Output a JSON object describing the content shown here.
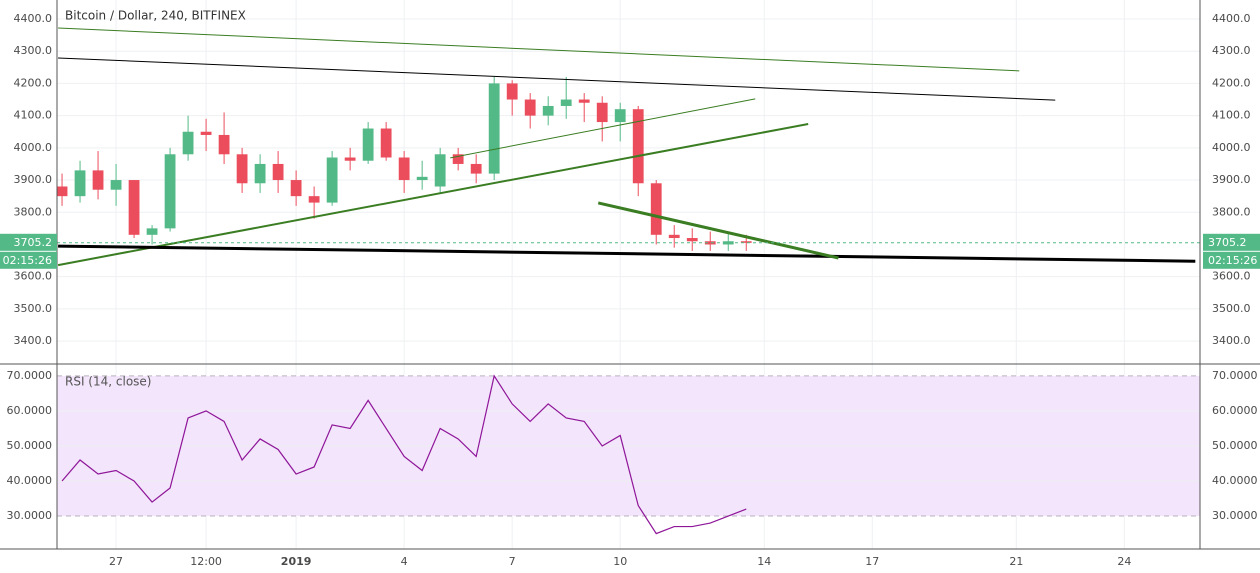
{
  "chart_data": [
    {
      "type": "candlestick",
      "title": "Bitcoin / Dollar, 240, BITFINEX",
      "x": [
        25.5,
        26,
        26.5,
        27,
        27.5,
        28,
        28.5,
        29,
        29.5,
        30,
        30.5,
        31,
        31.5,
        32,
        32.5,
        33,
        33.5,
        34,
        34.5,
        35,
        35.5,
        36,
        36.5,
        37,
        37.5,
        38,
        38.5,
        39,
        39.5,
        40,
        40.5,
        41,
        41.5,
        42,
        42.5,
        43,
        43.5,
        44,
        44.5
      ],
      "open": [
        3880,
        3850,
        3930,
        3870,
        3900,
        3730,
        3750,
        3980,
        4050,
        4040,
        3980,
        3890,
        3950,
        3900,
        3850,
        3830,
        3970,
        3960,
        4060,
        3970,
        3900,
        3880,
        3980,
        3950,
        3920,
        4200,
        4150,
        4100,
        4130,
        4150,
        4140,
        4080,
        4120,
        3890,
        3730,
        3720,
        3710,
        3700,
        3710
      ],
      "high": [
        3920,
        3960,
        3990,
        3950,
        3900,
        3760,
        4000,
        4100,
        4090,
        4110,
        4000,
        3980,
        3990,
        3930,
        3880,
        3990,
        4000,
        4080,
        4080,
        3990,
        3960,
        4000,
        4000,
        3980,
        4220,
        4210,
        4170,
        4160,
        4220,
        4170,
        4160,
        4140,
        4130,
        3900,
        3760,
        3750,
        3740,
        3740,
        3730
      ],
      "low": [
        3820,
        3830,
        3840,
        3820,
        3720,
        3700,
        3740,
        3960,
        3990,
        3950,
        3860,
        3860,
        3860,
        3820,
        3780,
        3820,
        3930,
        3950,
        3960,
        3860,
        3870,
        3860,
        3930,
        3890,
        3900,
        4100,
        4060,
        4070,
        4090,
        4080,
        4020,
        4020,
        3850,
        3700,
        3690,
        3680,
        3680,
        3680,
        3680
      ],
      "close": [
        3850,
        3930,
        3870,
        3900,
        3730,
        3750,
        3980,
        4050,
        4040,
        3980,
        3890,
        3950,
        3900,
        3850,
        3830,
        3970,
        3960,
        4060,
        3970,
        3900,
        3910,
        3980,
        3950,
        3920,
        4200,
        4150,
        4100,
        4130,
        4150,
        4140,
        4080,
        4120,
        3890,
        3730,
        3720,
        3710,
        3700,
        3710,
        3705
      ],
      "up_color": "#53b987",
      "down_color": "#eb4d5c",
      "xlim": [
        25.36,
        57.1
      ],
      "xticks": [
        {
          "value": 27,
          "label": "27"
        },
        {
          "value": 29.5,
          "label": "12:00"
        },
        {
          "value": 32,
          "label": "2019"
        },
        {
          "value": 35,
          "label": "4"
        },
        {
          "value": 38,
          "label": "7"
        },
        {
          "value": 41,
          "label": "10"
        },
        {
          "value": 45,
          "label": "14"
        },
        {
          "value": 48,
          "label": "17"
        },
        {
          "value": 52,
          "label": "21"
        },
        {
          "value": 55,
          "label": "24"
        }
      ],
      "ylim": [
        3332,
        4459
      ],
      "yticks": [
        {
          "value": 4400,
          "label": "4400.0"
        },
        {
          "value": 4300,
          "label": "4300.0"
        },
        {
          "value": 4200,
          "label": "4200.0"
        },
        {
          "value": 4100,
          "label": "4100.0"
        },
        {
          "value": 4000,
          "label": "4000.0"
        },
        {
          "value": 3900,
          "label": "3900.0"
        },
        {
          "value": 3800,
          "label": "3800.0"
        },
        {
          "value": 3600,
          "label": "3600.0"
        },
        {
          "value": 3500,
          "label": "3500.0"
        },
        {
          "value": 3400,
          "label": "3400.0"
        }
      ],
      "grid": true,
      "last_price": {
        "value": 3705.2,
        "label": "3705.2",
        "timer": "02:15:26",
        "color": "#53b987"
      },
      "trendlines": [
        {
          "color": "#3a7d22",
          "width": 1,
          "points": [
            [
              25.39,
              4372
            ],
            [
              52.08,
              4239
            ]
          ]
        },
        {
          "color": "#000000",
          "width": 1,
          "points": [
            [
              25.39,
              4279
            ],
            [
              53.08,
              4148
            ]
          ]
        },
        {
          "color": "#3a7d22",
          "width": 1,
          "points": [
            [
              36.28,
              3969
            ],
            [
              44.75,
              4152
            ]
          ]
        },
        {
          "color": "#3a7d22",
          "width": 2,
          "points": [
            [
              25.39,
              3636
            ],
            [
              46.22,
              4074
            ]
          ]
        },
        {
          "color": "#000000",
          "width": 3,
          "points": [
            [
              25.39,
              3695
            ],
            [
              56.97,
              3648
            ]
          ]
        },
        {
          "color": "#3a7d22",
          "width": 3,
          "points": [
            [
              40.39,
              3829
            ],
            [
              47.06,
              3658
            ]
          ]
        }
      ]
    },
    {
      "type": "line",
      "title": "RSI (14, close)",
      "series": [
        {
          "color": "#8e1599",
          "values": [
            40,
            46,
            42,
            43,
            40,
            34,
            38,
            58,
            60,
            57,
            46,
            52,
            49,
            42,
            44,
            56,
            55,
            63,
            55,
            47,
            43,
            55,
            52,
            47,
            70,
            62,
            57,
            62,
            58,
            57,
            50,
            53,
            33,
            25,
            27,
            27,
            28,
            30,
            32
          ]
        }
      ],
      "ylim": [
        20.6,
        73.1
      ],
      "yticks": [
        {
          "value": 70,
          "label": "70.0000"
        },
        {
          "value": 60,
          "label": "60.0000"
        },
        {
          "value": 50,
          "label": "50.0000"
        },
        {
          "value": 40,
          "label": "40.0000"
        },
        {
          "value": 30,
          "label": "30.0000"
        }
      ],
      "band_color": "#f3e5fb"
    }
  ]
}
